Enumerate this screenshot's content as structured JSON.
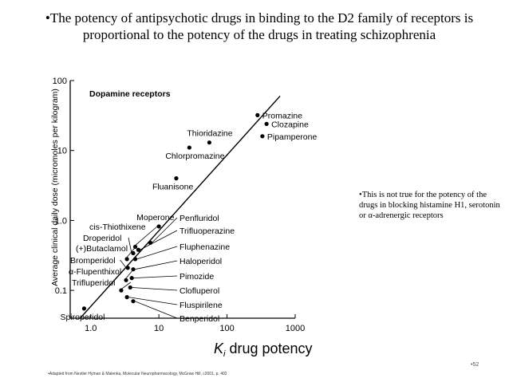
{
  "slide": {
    "bullet": "•",
    "title": "The potency of antipsychotic drugs in binding to the D2 family of receptors is proportional to the potency of the drugs in treating schizophrenia",
    "note": "This is not true for the potency of the drugs in blocking histamine H1, serotonin or α-adrenergic receptors",
    "footer": "Adapted from Nestler Hyman & Malenka, Molecular Neuropharmacology, McGraw Hill, c2001, p. 402",
    "page_number": "52"
  },
  "chart_data": {
    "type": "scatter",
    "title": "Dopamine receptors",
    "xlabel": "K_i drug potency",
    "ylabel": "Average clinical daily dose (micromoles per kilogram)",
    "x_scale": "log",
    "y_scale": "log",
    "xlim": [
      0.5,
      1000
    ],
    "ylim": [
      0.04,
      100
    ],
    "x_ticks": [
      {
        "value": 1,
        "label": "1.0"
      },
      {
        "value": 10,
        "label": "10"
      },
      {
        "value": 100,
        "label": "100"
      },
      {
        "value": 1000,
        "label": "1000"
      }
    ],
    "y_ticks": [
      {
        "value": 0.1,
        "label": "0.1"
      },
      {
        "value": 1,
        "label": "1.0"
      },
      {
        "value": 10,
        "label": "10"
      },
      {
        "value": 100,
        "label": "100"
      }
    ],
    "grid": false,
    "trend_line": [
      {
        "x": 0.7,
        "y": 0.04
      },
      {
        "x": 600,
        "y": 60
      }
    ],
    "points": [
      {
        "label": "Promazine",
        "x": 280,
        "y": 32,
        "label_side": "right"
      },
      {
        "label": "Clozapine",
        "x": 380,
        "y": 24,
        "label_side": "right"
      },
      {
        "label": "Pipamperone",
        "x": 330,
        "y": 16,
        "label_side": "right"
      },
      {
        "label": "Thioridazine",
        "x": 55,
        "y": 13,
        "label_side": "above"
      },
      {
        "label": "Chlorpromazine",
        "x": 28,
        "y": 11,
        "label_side": "below"
      },
      {
        "label": "Fluanisone",
        "x": 18,
        "y": 4.0,
        "label_side": "below"
      },
      {
        "label": "Moperone",
        "x": 10,
        "y": 0.82,
        "label_side": "above"
      },
      {
        "label": "Penfluridol",
        "x": 7.5,
        "y": 0.48,
        "label_side": "leader"
      },
      {
        "label": "Trifluoperazine",
        "x": 5.0,
        "y": 0.38,
        "label_side": "leader"
      },
      {
        "label": "Fluphenazine",
        "x": 4.5,
        "y": 0.28,
        "label_side": "leader"
      },
      {
        "label": "Haloperidol",
        "x": 4.2,
        "y": 0.2,
        "label_side": "leader"
      },
      {
        "label": "Pimozide",
        "x": 4.0,
        "y": 0.15,
        "label_side": "leader"
      },
      {
        "label": "Clofluperol",
        "x": 3.8,
        "y": 0.11,
        "label_side": "leader"
      },
      {
        "label": "Fluspirilene",
        "x": 3.4,
        "y": 0.08,
        "label_side": "leader"
      },
      {
        "label": "Benperidol",
        "x": 4.2,
        "y": 0.07,
        "label_side": "leader"
      },
      {
        "label": "cis-Thiothixene",
        "x": 4.5,
        "y": 0.42,
        "label_side": "left"
      },
      {
        "label": "Droperidol",
        "x": 4.2,
        "y": 0.34,
        "label_side": "left"
      },
      {
        "label": "(+)Butaclamol",
        "x": 3.4,
        "y": 0.28,
        "label_side": "left"
      },
      {
        "label": "Bromperidol",
        "x": 3.5,
        "y": 0.21,
        "label_side": "left"
      },
      {
        "label": "α-Flupenthixol",
        "x": 3.3,
        "y": 0.14,
        "label_side": "left"
      },
      {
        "label": "Trifluperidol",
        "x": 2.8,
        "y": 0.1,
        "label_side": "left"
      },
      {
        "label": "Spiroperidol",
        "x": 0.8,
        "y": 0.055,
        "label_side": "below"
      }
    ]
  }
}
